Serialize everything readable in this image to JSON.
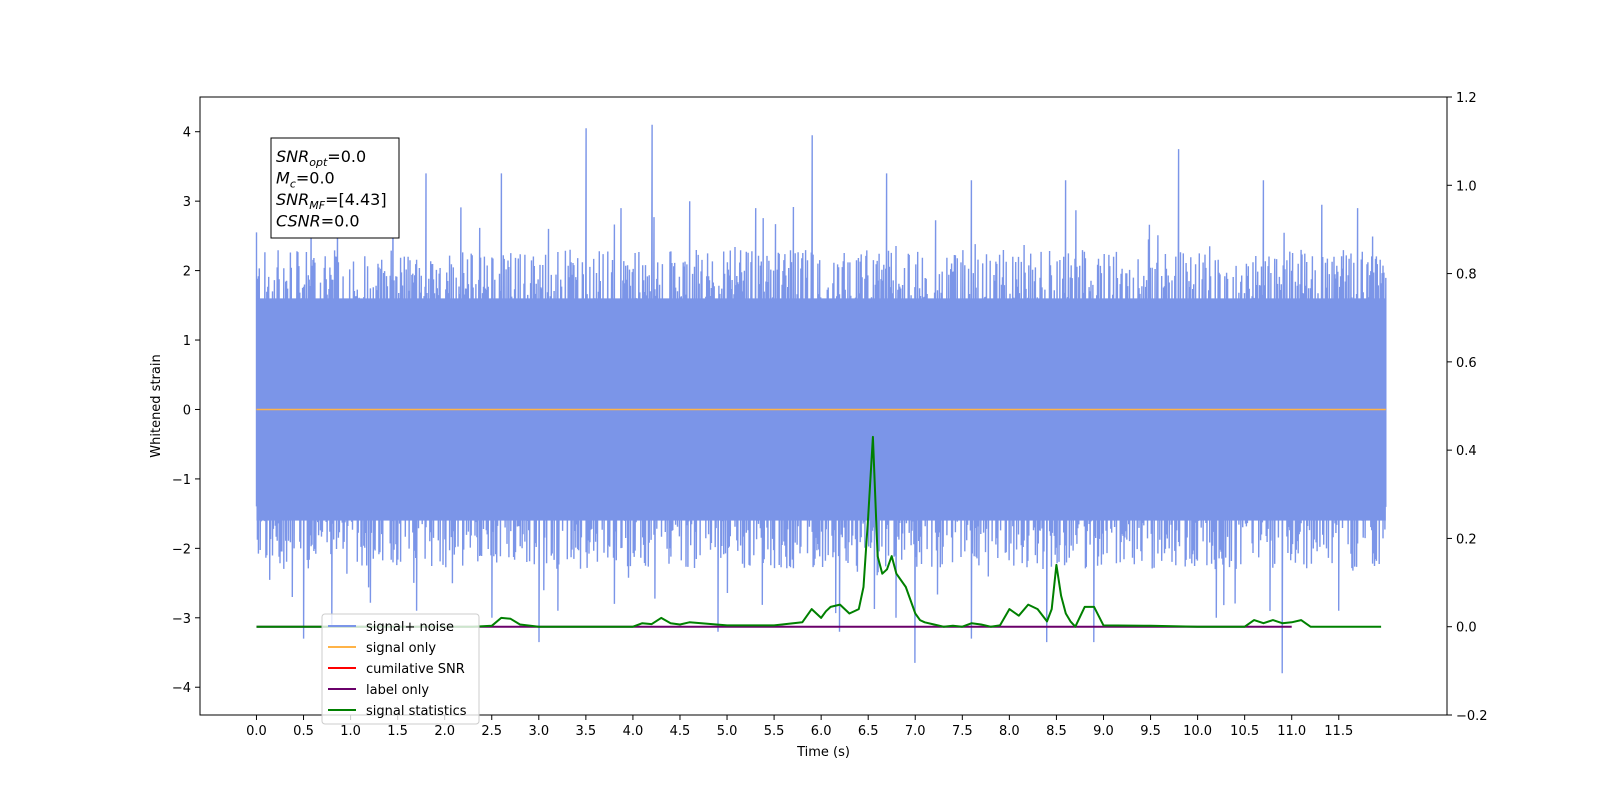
{
  "chart_data": {
    "type": "line",
    "xlabel": "Time (s)",
    "ylabel": "Whitened strain",
    "xlim": [
      -0.6,
      12.65
    ],
    "ylim": [
      -4.4,
      4.5
    ],
    "y2lim": [
      -0.2,
      1.2
    ],
    "x_ticks": [
      "0.0",
      "0.5",
      "1.0",
      "1.5",
      "2.0",
      "2.5",
      "3.0",
      "3.5",
      "4.0",
      "4.5",
      "5.0",
      "5.5",
      "6.0",
      "6.5",
      "7.0",
      "7.5",
      "8.0",
      "8.5",
      "9.0",
      "9.5",
      "10.0",
      "10.5",
      "11.0",
      "11.5"
    ],
    "y_ticks": [
      "4",
      "3",
      "2",
      "1",
      "0",
      "−1",
      "−2",
      "−3",
      "−4"
    ],
    "y2_ticks": [
      "1.2",
      "1.0",
      "0.8",
      "0.6",
      "0.4",
      "0.2",
      "0.0",
      "−0.2"
    ],
    "grid": false,
    "legend_position": "lower-left",
    "noise": {
      "x_range": [
        0.0,
        12.0
      ],
      "typical_low": -1.6,
      "typical_high": 1.6,
      "peaks_high": [
        [
          0.0,
          2.55
        ],
        [
          0.85,
          2.2
        ],
        [
          1.8,
          3.4
        ],
        [
          2.6,
          3.4
        ],
        [
          3.1,
          2.6
        ],
        [
          3.5,
          4.05
        ],
        [
          4.2,
          4.1
        ],
        [
          4.6,
          3.0
        ],
        [
          5.3,
          2.9
        ],
        [
          5.9,
          3.95
        ],
        [
          6.7,
          3.4
        ],
        [
          7.6,
          3.3
        ],
        [
          8.6,
          3.3
        ],
        [
          9.8,
          3.75
        ],
        [
          10.7,
          3.3
        ],
        [
          11.7,
          2.9
        ]
      ],
      "peaks_low": [
        [
          0.5,
          -3.3
        ],
        [
          0.8,
          -3.1
        ],
        [
          1.7,
          -2.9
        ],
        [
          2.5,
          -3.0
        ],
        [
          3.0,
          -3.35
        ],
        [
          3.2,
          -2.9
        ],
        [
          3.8,
          -2.8
        ],
        [
          4.9,
          -3.2
        ],
        [
          6.2,
          -3.2
        ],
        [
          6.8,
          -3.0
        ],
        [
          7.0,
          -3.65
        ],
        [
          7.6,
          -3.3
        ],
        [
          8.4,
          -3.35
        ],
        [
          8.9,
          -3.35
        ],
        [
          10.2,
          -3.0
        ],
        [
          10.9,
          -3.8
        ],
        [
          11.5,
          -2.9
        ]
      ],
      "color": "#5b7be0"
    },
    "series": [
      {
        "name": "signal+ noise",
        "color": "#7b95e8"
      },
      {
        "name": "signal only",
        "color": "#ffb347",
        "x": [
          0.0,
          12.0
        ],
        "y": [
          0.0,
          0.0
        ]
      },
      {
        "name": "cumilative SNR",
        "color": "#ff0000"
      },
      {
        "name": "label only",
        "color": "#6a006a",
        "axis": "right",
        "x": [
          0.0,
          11.0
        ],
        "y": [
          0.0,
          0.0
        ]
      },
      {
        "name": "signal statistics",
        "color": "#008000",
        "axis": "right",
        "x": [
          0.0,
          0.5,
          1.0,
          1.5,
          2.0,
          2.3,
          2.5,
          2.6,
          2.7,
          2.8,
          3.0,
          3.5,
          4.0,
          4.1,
          4.2,
          4.3,
          4.4,
          4.5,
          4.6,
          5.0,
          5.5,
          5.8,
          5.9,
          6.0,
          6.05,
          6.1,
          6.2,
          6.3,
          6.4,
          6.45,
          6.5,
          6.55,
          6.6,
          6.65,
          6.7,
          6.75,
          6.8,
          6.9,
          7.0,
          7.05,
          7.1,
          7.2,
          7.3,
          7.4,
          7.5,
          7.6,
          7.7,
          7.8,
          7.9,
          8.0,
          8.1,
          8.2,
          8.3,
          8.4,
          8.45,
          8.5,
          8.55,
          8.6,
          8.65,
          8.7,
          8.8,
          8.9,
          9.0,
          9.5,
          10.0,
          10.5,
          10.6,
          10.7,
          10.8,
          10.9,
          11.0,
          11.1,
          11.2,
          11.5,
          11.95
        ],
        "y": [
          0.0,
          0.0,
          0.0,
          0.0,
          0.0,
          0.0,
          0.002,
          0.02,
          0.018,
          0.005,
          0.0,
          0.0,
          0.0,
          0.008,
          0.006,
          0.02,
          0.008,
          0.005,
          0.01,
          0.003,
          0.003,
          0.01,
          0.04,
          0.02,
          0.035,
          0.045,
          0.05,
          0.03,
          0.04,
          0.09,
          0.25,
          0.43,
          0.16,
          0.12,
          0.13,
          0.16,
          0.12,
          0.09,
          0.03,
          0.015,
          0.01,
          0.005,
          0.0,
          0.002,
          0.0,
          0.008,
          0.005,
          0.0,
          0.003,
          0.04,
          0.025,
          0.05,
          0.04,
          0.012,
          0.04,
          0.14,
          0.07,
          0.03,
          0.012,
          0.0,
          0.045,
          0.045,
          0.003,
          0.002,
          0.0,
          0.0,
          0.015,
          0.008,
          0.015,
          0.008,
          0.01,
          0.015,
          0.0,
          0.0,
          0.0
        ]
      }
    ],
    "annotations": [
      {
        "base": "SNR",
        "sub": "opt",
        "value": "=0.0"
      },
      {
        "base": "M",
        "sub": "c",
        "value": "=0.0"
      },
      {
        "base": "SNR",
        "sub": "MF",
        "value": "=[4.43]"
      },
      {
        "base": "CSNR",
        "sub": "",
        "value": "=0.0"
      }
    ]
  }
}
